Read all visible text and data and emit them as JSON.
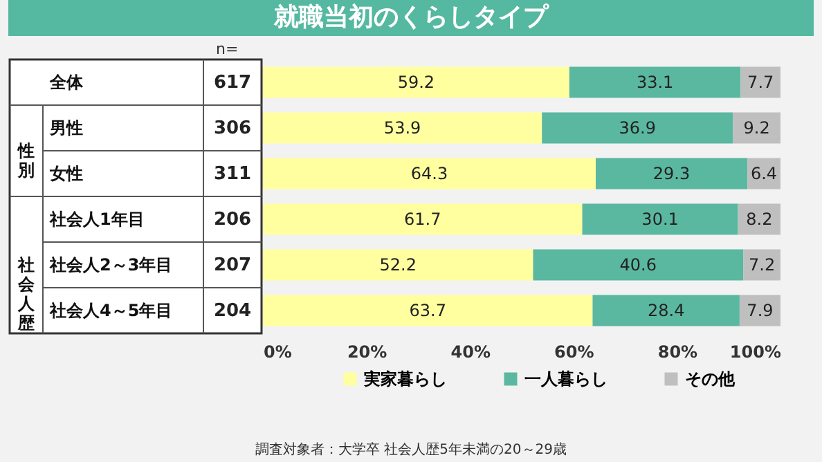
{
  "chart_data": {
    "type": "bar",
    "orientation": "horizontal",
    "stacked": true,
    "title": "就職当初のくらしタイプ",
    "categories": [
      "全体",
      "男性",
      "女性",
      "社会人1年目",
      "社会人2～3年目",
      "社会人4～5年目"
    ],
    "series": [
      {
        "name": "実家暮らし",
        "color": "#ffffa0",
        "values": [
          59.2,
          53.9,
          64.3,
          61.7,
          52.2,
          63.7
        ]
      },
      {
        "name": "一人暮らし",
        "color": "#5bb8a0",
        "values": [
          33.1,
          36.9,
          29.3,
          30.1,
          40.6,
          28.4
        ]
      },
      {
        "name": "その他",
        "color": "#bfbfbf",
        "values": [
          7.7,
          9.2,
          6.4,
          8.2,
          7.2,
          7.9
        ]
      }
    ],
    "xlim": [
      0,
      100
    ],
    "xticks": [
      {
        "value": 0,
        "label": "0%"
      },
      {
        "value": 20,
        "label": "20%"
      },
      {
        "value": 40,
        "label": "40%"
      },
      {
        "value": 60,
        "label": "60%"
      },
      {
        "value": 80,
        "label": "80%"
      },
      {
        "value": 100,
        "label": "100%"
      }
    ],
    "data_labels": true,
    "grid": false,
    "legend": "bottom",
    "annotations": [
      "n=",
      "性別",
      "社会人歴",
      "617",
      "306",
      "311",
      "206",
      "207",
      "204",
      "調査対象者：大学卒 社会人歴5年未満の20～29歳"
    ]
  }
}
